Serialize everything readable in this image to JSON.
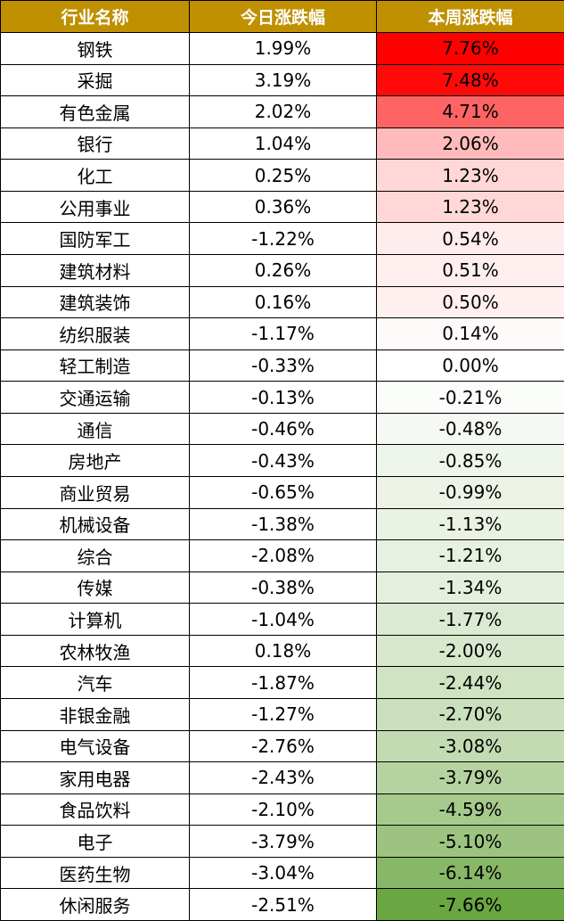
{
  "table": {
    "header": [
      "行业名称",
      "今日涨跌幅",
      "本周涨跌幅"
    ],
    "rows": [
      [
        "钢铁",
        "1.99%",
        "7.76%"
      ],
      [
        "采掘",
        "3.19%",
        "7.48%"
      ],
      [
        "有色金属",
        "2.02%",
        "4.71%"
      ],
      [
        "银行",
        "1.04%",
        "2.06%"
      ],
      [
        "化工",
        "0.25%",
        "1.23%"
      ],
      [
        "公用事业",
        "0.36%",
        "1.23%"
      ],
      [
        "国防军工",
        "-1.22%",
        "0.54%"
      ],
      [
        "建筑材料",
        "0.26%",
        "0.51%"
      ],
      [
        "建筑装饰",
        "0.16%",
        "0.50%"
      ],
      [
        "纺织服装",
        "-1.17%",
        "0.14%"
      ],
      [
        "轻工制造",
        "-0.33%",
        "0.00%"
      ],
      [
        "交通运输",
        "-0.13%",
        "-0.21%"
      ],
      [
        "通信",
        "-0.46%",
        "-0.48%"
      ],
      [
        "房地产",
        "-0.43%",
        "-0.85%"
      ],
      [
        "商业贸易",
        "-0.65%",
        "-0.99%"
      ],
      [
        "机械设备",
        "-1.38%",
        "-1.13%"
      ],
      [
        "综合",
        "-2.08%",
        "-1.21%"
      ],
      [
        "传媒",
        "-0.38%",
        "-1.34%"
      ],
      [
        "计算机",
        "-1.04%",
        "-1.77%"
      ],
      [
        "农林牧渔",
        "0.18%",
        "-2.00%"
      ],
      [
        "汽车",
        "-1.87%",
        "-2.44%"
      ],
      [
        "非银金融",
        "-1.27%",
        "-2.70%"
      ],
      [
        "电气设备",
        "-2.76%",
        "-3.08%"
      ],
      [
        "家用电器",
        "-2.43%",
        "-3.79%"
      ],
      [
        "食品饮料",
        "-2.10%",
        "-4.59%"
      ],
      [
        "电子",
        "-3.79%",
        "-5.10%"
      ],
      [
        "医药生物",
        "-3.04%",
        "-6.14%"
      ],
      [
        "休闲服务",
        "-2.51%",
        "-7.66%"
      ]
    ],
    "header_color": "#bf9000",
    "color_scale": {
      "column": 2,
      "max_color": "#ff0000",
      "mid_color": "#ffffff",
      "min_color": "#6aa641"
    }
  }
}
